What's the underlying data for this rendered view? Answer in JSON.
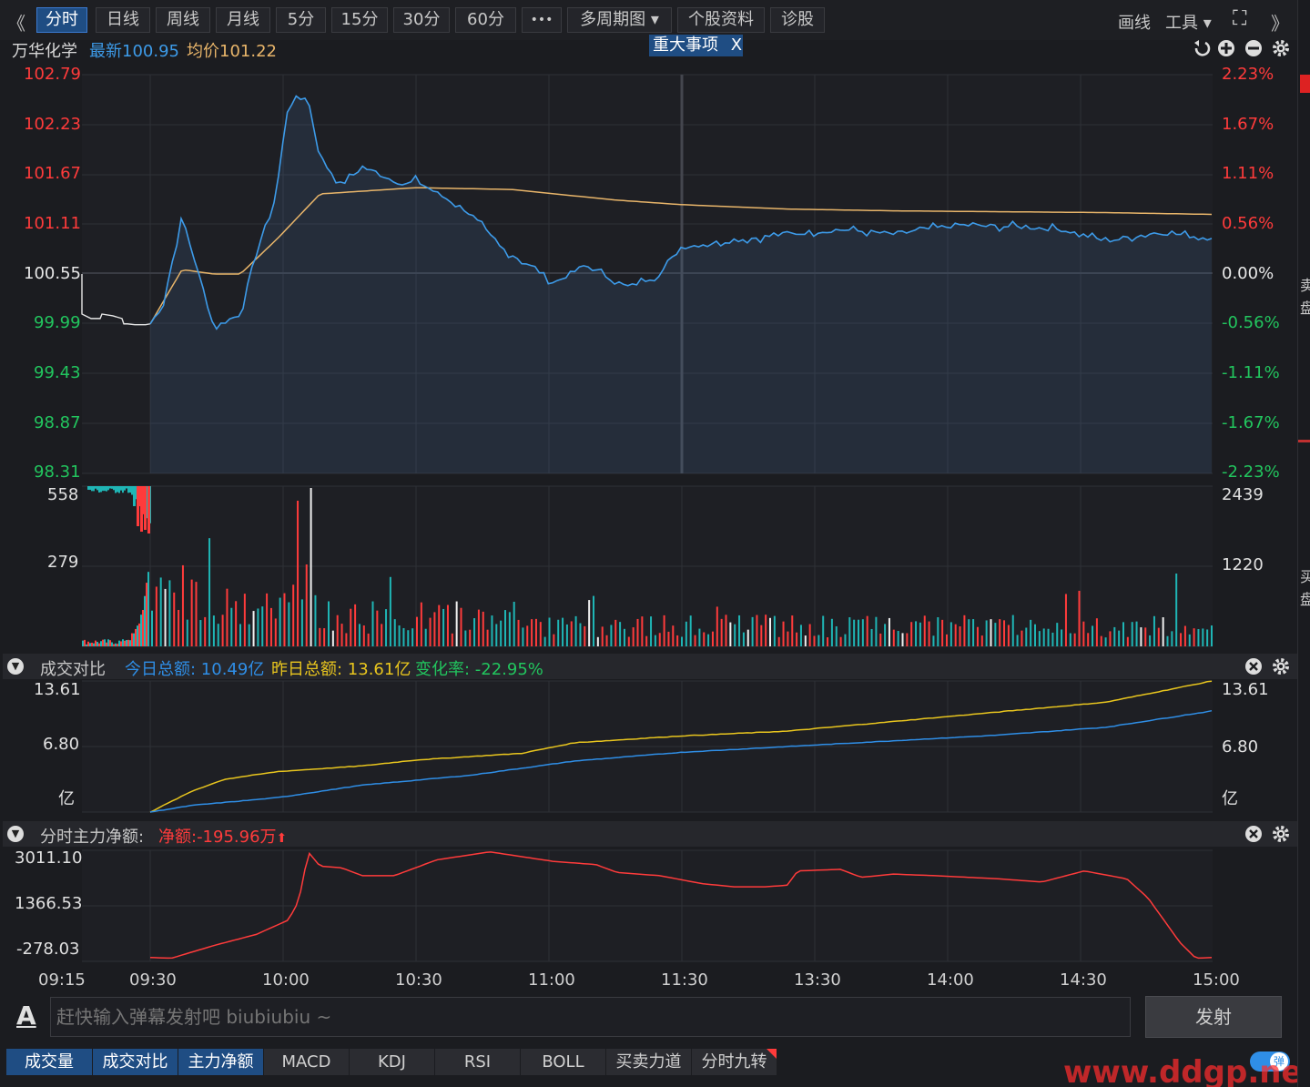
{
  "toolbar": {
    "back": "《",
    "forward": "》",
    "tabs": [
      "分时",
      "日线",
      "周线",
      "月线",
      "5分",
      "15分",
      "30分",
      "60分",
      "•••",
      "多周期图 ▾",
      "个股资料",
      "诊股"
    ],
    "draw": "画线",
    "tools": "工具 ▾",
    "expand": "⛶"
  },
  "stock": {
    "name": "万华化学",
    "latest": "最新100.95",
    "avg": "均价101.22",
    "event_button": "重大事项",
    "event_close": "X"
  },
  "price_axis": {
    "left": [
      "102.79",
      "102.23",
      "101.67",
      "101.11",
      "100.55",
      "99.99",
      "99.43",
      "98.87",
      "98.31"
    ],
    "right": [
      "2.23%",
      "1.67%",
      "1.11%",
      "0.56%",
      "0.00%",
      "-0.56%",
      "-1.11%",
      "-1.67%",
      "-2.23%"
    ]
  },
  "volume_axis": {
    "left": [
      "558",
      "279"
    ],
    "right": [
      "2439",
      "1220"
    ]
  },
  "compare": {
    "title": "成交对比",
    "today": "今日总额: 10.49亿",
    "yesterday": "昨日总额: 13.61亿",
    "change": "变化率: -22.95%",
    "left": [
      "13.61",
      "6.80",
      "亿"
    ],
    "right": [
      "13.61",
      "6.80",
      "亿"
    ]
  },
  "netflow": {
    "title": "分时主力净额:",
    "value": "净额:-195.96万",
    "arrow": "⬆",
    "axis": [
      "3011.10",
      "1366.53",
      "-278.03"
    ]
  },
  "x_axis": [
    "09:15",
    "09:30",
    "10:00",
    "10:30",
    "11:00",
    "11:30",
    "13:30",
    "14:00",
    "14:30",
    "15:00"
  ],
  "chat": {
    "placeholder": "赶快输入弹幕发射吧 biubiubiu ~",
    "send": "发射",
    "font_icon": "A"
  },
  "bottom_tabs": [
    "成交量",
    "成交对比",
    "主力净额",
    "MACD",
    "KDJ",
    "RSI",
    "BOLL",
    "买卖力道",
    "分时九转"
  ],
  "bottom_badge": "弹",
  "watermark": "www.ddgp.net",
  "right_strip": [
    "卖",
    "盘",
    "买",
    "盘"
  ],
  "colors": {
    "up": "#ff3b3b",
    "down": "#22c55e",
    "price": "#3d9be9",
    "avg": "#e8b56a",
    "today": "#2f8ee6",
    "yesterday": "#e8c51e",
    "accent": "#1f4d83"
  },
  "chart_data": [
    {
      "type": "line",
      "title": "万华化学 分时",
      "ylim": [
        98.31,
        102.79
      ],
      "x": [
        "09:30",
        "10:00",
        "10:30",
        "11:00",
        "11:30",
        "13:30",
        "14:00",
        "14:30",
        "15:00"
      ],
      "series": [
        {
          "name": "最新",
          "values": [
            99.99,
            101.25,
            101.72,
            100.44,
            100.86,
            101.0,
            101.07,
            101.02,
            100.95
          ]
        },
        {
          "name": "均价",
          "values": [
            99.99,
            100.9,
            101.5,
            101.44,
            101.3,
            101.26,
            101.23,
            101.23,
            101.22
          ]
        }
      ]
    },
    {
      "type": "line",
      "title": "成交对比",
      "ylim": [
        0,
        13.61
      ],
      "x": [
        "09:30",
        "10:00",
        "10:30",
        "11:00",
        "11:30",
        "13:30",
        "14:00",
        "14:30",
        "15:00"
      ],
      "series": [
        {
          "name": "今日总额",
          "values": [
            0,
            1.5,
            3.9,
            5.8,
            6.7,
            7.6,
            8.8,
            9.6,
            10.49
          ]
        },
        {
          "name": "昨日总额",
          "values": [
            0,
            4.5,
            5.4,
            7.0,
            8.2,
            9.3,
            11.2,
            12.5,
            13.61
          ]
        }
      ]
    },
    {
      "type": "line",
      "title": "分时主力净额",
      "ylim": [
        -500,
        3150
      ],
      "x": [
        "09:30",
        "10:00",
        "10:30",
        "11:00",
        "11:30",
        "13:30",
        "14:00",
        "14:30",
        "15:00"
      ],
      "series": [
        {
          "name": "净额",
          "values": [
            -300,
            1550,
            2600,
            2000,
            1600,
            1950,
            1900,
            1550,
            -195.96
          ]
        }
      ]
    }
  ]
}
